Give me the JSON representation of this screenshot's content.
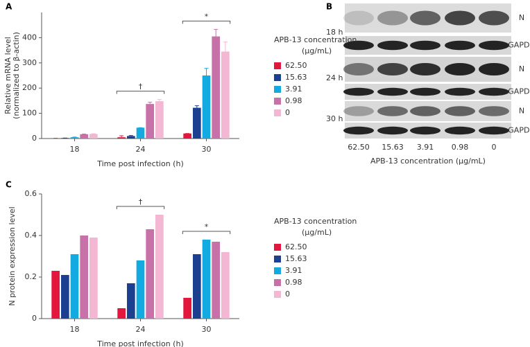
{
  "chart_data": [
    {
      "type": "bar",
      "panel": "A",
      "ylabel": [
        "Relative mRNA level",
        "(normalized to β-actin)"
      ],
      "xlabel": "Time post infection (h)",
      "categories": [
        "18",
        "24",
        "30"
      ],
      "legend_title": [
        "APB-13 concentration",
        "(µg/mL)"
      ],
      "series": [
        {
          "name": "62.50",
          "color": "#e3173e",
          "values": [
            1,
            5,
            20
          ],
          "errors": [
            0,
            6,
            0
          ]
        },
        {
          "name": "15.63",
          "color": "#1d3f8f",
          "values": [
            2,
            10,
            122
          ],
          "errors": [
            0,
            2,
            8
          ]
        },
        {
          "name": "3.91",
          "color": "#13a9e1",
          "values": [
            5,
            43,
            250
          ],
          "errors": [
            1,
            0,
            28
          ]
        },
        {
          "name": "0.98",
          "color": "#c870a8",
          "values": [
            17,
            137,
            405
          ],
          "errors": [
            1,
            7,
            28
          ]
        },
        {
          "name": "0",
          "color": "#f4b7d3",
          "values": [
            18,
            148,
            345
          ],
          "errors": [
            1,
            7,
            38
          ]
        }
      ],
      "annotations": [
        "†",
        "*"
      ],
      "ylim": [
        0,
        500
      ],
      "yticks": [
        0,
        100,
        200,
        300,
        400
      ]
    },
    {
      "type": "bar",
      "panel": "C",
      "ylabel": [
        "N protein expression level"
      ],
      "xlabel": "Time post infection (h)",
      "categories": [
        "18",
        "24",
        "30"
      ],
      "legend_title": [
        "APB-13 concentration",
        "(µg/mL)"
      ],
      "series": [
        {
          "name": "62.50",
          "color": "#e3173e",
          "values": [
            0.23,
            0.05,
            0.1
          ]
        },
        {
          "name": "15.63",
          "color": "#1d3f8f",
          "values": [
            0.21,
            0.17,
            0.31
          ]
        },
        {
          "name": "3.91",
          "color": "#13a9e1",
          "values": [
            0.31,
            0.28,
            0.38
          ]
        },
        {
          "name": "0.98",
          "color": "#c870a8",
          "values": [
            0.4,
            0.43,
            0.37
          ]
        },
        {
          "name": "0",
          "color": "#f4b7d3",
          "values": [
            0.39,
            0.5,
            0.32
          ]
        }
      ],
      "annotations": [
        "†",
        "*"
      ],
      "ylim": [
        0,
        0.6
      ],
      "yticks": [
        0,
        0.2,
        0.4,
        0.6
      ]
    }
  ],
  "blot": {
    "panel": "B",
    "rows": [
      "18 h",
      "24 h",
      "30 h"
    ],
    "band_labels": [
      "N",
      "GAPDH",
      "N",
      "GAPDH",
      "N",
      "GAPDH"
    ],
    "lanes": [
      "62.50",
      "15.63",
      "3.91",
      "0.98",
      "0"
    ],
    "xlabel": "APB-13 concentration (µg/mL)"
  }
}
